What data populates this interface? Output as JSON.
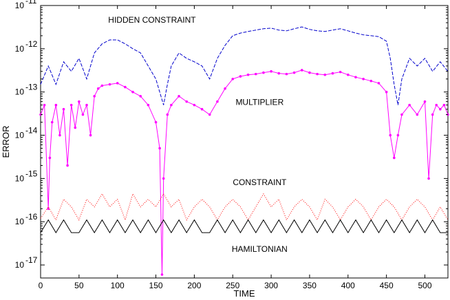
{
  "chart_data": {
    "type": "line",
    "xlabel": "TIME",
    "ylabel": "ERROR",
    "x_scale": "linear",
    "y_scale": "log",
    "xlim": [
      0,
      530
    ],
    "ylim": [
      5e-18,
      1e-11
    ],
    "x_ticks": [
      0,
      50,
      100,
      150,
      200,
      250,
      300,
      350,
      400,
      450,
      500
    ],
    "x_tick_labels": [
      "0",
      "50",
      "100",
      "150",
      "200",
      "250",
      "300",
      "350",
      "400",
      "450",
      "500"
    ],
    "y_ticks": [
      -17,
      -16,
      -15,
      -14,
      -13,
      -12,
      -11
    ],
    "y_tick_labels": [
      {
        "base": "10",
        "exp": "-17"
      },
      {
        "base": "10",
        "exp": "-16"
      },
      {
        "base": "10",
        "exp": "-15"
      },
      {
        "base": "10",
        "exp": "-14"
      },
      {
        "base": "10",
        "exp": "-13"
      },
      {
        "base": "10",
        "exp": "-12"
      },
      {
        "base": "10",
        "exp": "-11"
      }
    ],
    "grid": false,
    "annotations": [
      {
        "text": "HIDDEN CONSTRAINT",
        "x": 145,
        "y": 4e-12
      },
      {
        "text": "MULTIPLIER",
        "x": 285,
        "y": 5e-14
      },
      {
        "text": "CONSTRAINT",
        "x": 285,
        "y": 7e-16
      },
      {
        "text": "HAMILTONIAN",
        "x": 285,
        "y": 2e-17
      }
    ],
    "series": [
      {
        "annotation": "HIDDEN CONSTRAINT",
        "color": "#0000cc",
        "style": "dashed",
        "x": [
          0,
          10,
          20,
          30,
          40,
          50,
          60,
          70,
          80,
          90,
          100,
          110,
          120,
          130,
          140,
          150,
          155,
          160,
          165,
          170,
          180,
          190,
          200,
          210,
          220,
          230,
          240,
          250,
          260,
          270,
          280,
          290,
          300,
          310,
          320,
          330,
          340,
          350,
          360,
          370,
          380,
          390,
          400,
          410,
          420,
          430,
          440,
          450,
          455,
          460,
          465,
          470,
          480,
          490,
          500,
          510,
          520,
          530
        ],
        "y": [
          1.5e-13,
          4e-13,
          1.5e-13,
          5e-13,
          3e-13,
          6e-13,
          2e-13,
          8e-13,
          1.3e-12,
          1.6e-12,
          1.6e-12,
          1.3e-12,
          1e-12,
          8e-13,
          4e-13,
          2e-13,
          1e-13,
          5e-14,
          1.5e-13,
          4e-13,
          8e-13,
          6e-13,
          5e-13,
          4e-13,
          2e-13,
          6e-13,
          1.2e-12,
          2e-12,
          2.3e-12,
          2.5e-12,
          2.7e-12,
          2.9e-12,
          3e-12,
          2.7e-12,
          2.6e-12,
          2.9e-12,
          3.2e-12,
          2.8e-12,
          2.6e-12,
          2.5e-12,
          2.7e-12,
          2.9e-12,
          2.6e-12,
          2.3e-12,
          2.1e-12,
          2e-12,
          1.9e-12,
          1.5e-12,
          6e-13,
          1.5e-13,
          5e-14,
          2e-13,
          6e-13,
          4e-13,
          6e-13,
          3e-13,
          5e-13,
          3e-13
        ]
      },
      {
        "annotation": "MULTIPLIER",
        "color": "#ff00ff",
        "style": "solid-dotted",
        "x": [
          0,
          5,
          10,
          12,
          15,
          20,
          25,
          30,
          35,
          40,
          45,
          50,
          55,
          60,
          65,
          70,
          75,
          80,
          90,
          100,
          110,
          120,
          130,
          140,
          150,
          155,
          158,
          160,
          165,
          170,
          180,
          190,
          200,
          210,
          220,
          230,
          240,
          250,
          260,
          270,
          280,
          290,
          300,
          310,
          320,
          330,
          340,
          350,
          360,
          370,
          380,
          390,
          400,
          410,
          420,
          430,
          440,
          450,
          455,
          460,
          465,
          470,
          480,
          490,
          500,
          505,
          510,
          515,
          520,
          525,
          530
        ],
        "y": [
          3e-14,
          5e-14,
          2e-16,
          3e-15,
          2e-14,
          5e-14,
          1e-14,
          4e-14,
          2e-15,
          5e-14,
          1.5e-14,
          6e-14,
          3e-14,
          5e-14,
          1e-14,
          8e-14,
          1.2e-13,
          1.4e-13,
          1.5e-13,
          1.6e-13,
          1.3e-13,
          1e-13,
          8e-14,
          5e-14,
          2e-14,
          5e-15,
          6e-18,
          1e-15,
          3e-14,
          5e-14,
          8e-14,
          6e-14,
          5e-14,
          4e-14,
          3e-14,
          6e-14,
          1.2e-13,
          2e-13,
          2.3e-13,
          2.5e-13,
          2.6e-13,
          2.8e-13,
          3e-13,
          2.7e-13,
          2.6e-13,
          2.8e-13,
          3.2e-13,
          2.8e-13,
          2.6e-13,
          2.5e-13,
          2.7e-13,
          2.9e-13,
          2.5e-13,
          2.2e-13,
          2e-13,
          1.8e-13,
          1.6e-13,
          1e-13,
          1e-14,
          3e-15,
          1e-14,
          3e-14,
          5e-14,
          3e-14,
          6e-14,
          1e-15,
          3e-14,
          5e-14,
          4e-14,
          5e-14,
          3e-14
        ]
      },
      {
        "annotation": "CONSTRAINT",
        "color": "#ff0000",
        "style": "dotted",
        "x": [
          0,
          10,
          20,
          30,
          40,
          50,
          60,
          70,
          80,
          90,
          100,
          110,
          120,
          130,
          140,
          150,
          160,
          170,
          180,
          190,
          200,
          210,
          220,
          230,
          240,
          250,
          260,
          270,
          280,
          290,
          300,
          310,
          320,
          330,
          340,
          350,
          360,
          370,
          380,
          390,
          400,
          410,
          420,
          430,
          440,
          450,
          460,
          470,
          480,
          490,
          500,
          510,
          520,
          530
        ],
        "y": [
          1.2e-16,
          2.2e-16,
          1.1e-16,
          3.3e-16,
          2.2e-16,
          1.1e-16,
          3.3e-16,
          2.2e-16,
          4.4e-16,
          2.2e-16,
          3.3e-16,
          1.1e-16,
          4.4e-16,
          2.2e-16,
          3.3e-16,
          2.2e-16,
          4.4e-16,
          2.2e-16,
          3.3e-16,
          1.1e-16,
          2.2e-16,
          3.3e-16,
          2.2e-16,
          1.1e-16,
          2.2e-16,
          3.3e-16,
          2.2e-16,
          1.1e-16,
          2.2e-16,
          4.4e-16,
          2.2e-16,
          3.3e-16,
          1.1e-16,
          2.2e-16,
          3.3e-16,
          2.2e-16,
          1.1e-16,
          3.3e-16,
          2.2e-16,
          1.1e-16,
          2.2e-16,
          3.3e-16,
          2.2e-16,
          1.1e-16,
          2.2e-16,
          3.3e-16,
          2.2e-16,
          1.1e-16,
          2.2e-16,
          3.3e-16,
          2.2e-16,
          1.1e-16,
          2.2e-16,
          1.1e-16
        ]
      },
      {
        "annotation": "HAMILTONIAN",
        "color": "#000000",
        "style": "solid",
        "x": [
          0,
          10,
          20,
          30,
          40,
          50,
          60,
          70,
          80,
          90,
          100,
          110,
          120,
          130,
          140,
          150,
          160,
          170,
          180,
          190,
          200,
          210,
          220,
          230,
          240,
          250,
          260,
          270,
          280,
          290,
          300,
          310,
          320,
          330,
          340,
          350,
          360,
          370,
          380,
          390,
          400,
          410,
          420,
          430,
          440,
          450,
          460,
          470,
          480,
          490,
          500,
          510,
          520,
          530
        ],
        "y": [
          5.6e-17,
          1.1e-16,
          5.6e-17,
          1.1e-16,
          5.6e-17,
          5.6e-17,
          1.1e-16,
          5.6e-17,
          1.1e-16,
          5.6e-17,
          1.1e-16,
          5.6e-17,
          1.1e-16,
          5.6e-17,
          1.1e-16,
          5.6e-17,
          1.1e-16,
          5.6e-17,
          1.1e-16,
          5.6e-17,
          1.1e-16,
          5.6e-17,
          5.6e-17,
          1.1e-16,
          5.6e-17,
          1.1e-16,
          5.6e-17,
          1.1e-16,
          5.6e-17,
          1.1e-16,
          5.6e-17,
          1.1e-16,
          5.6e-17,
          1.1e-16,
          5.6e-17,
          1.1e-16,
          5.6e-17,
          1.1e-16,
          5.6e-17,
          1.1e-16,
          5.6e-17,
          1.1e-16,
          5.6e-17,
          1.1e-16,
          5.6e-17,
          1.1e-16,
          5.6e-17,
          1.1e-16,
          5.6e-17,
          1.1e-16,
          5.6e-17,
          1.1e-16,
          5.6e-17,
          5.6e-17
        ]
      }
    ]
  }
}
